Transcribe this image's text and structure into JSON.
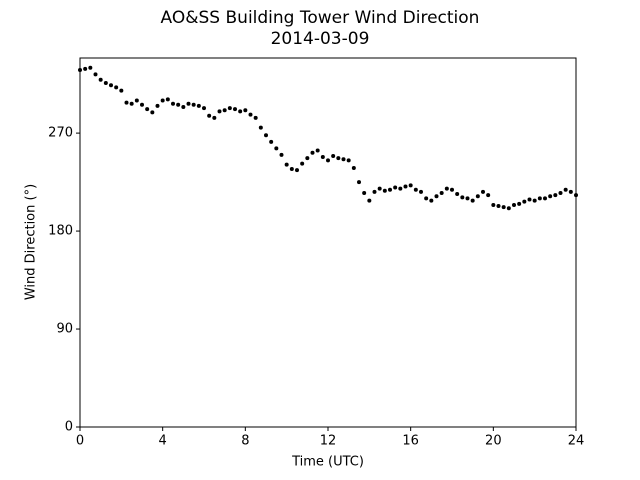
{
  "chart_data": {
    "type": "scatter",
    "title": "AO&SS Building Tower Wind Direction",
    "subtitle": "2014-03-09",
    "x_label": "Time (UTC)",
    "y_label": "Wind Direction (°)",
    "color": "#000000",
    "xlim": [
      0,
      24
    ],
    "xticks": [
      0,
      4,
      8,
      12,
      16,
      20,
      24
    ],
    "ylim": [
      0,
      339
    ],
    "yticks": [
      0,
      90,
      180,
      270
    ],
    "x": [
      0,
      0.25,
      0.5,
      0.75,
      1,
      1.25,
      1.5,
      1.75,
      2,
      2.25,
      2.5,
      2.75,
      3,
      3.25,
      3.5,
      3.75,
      4,
      4.25,
      4.5,
      4.75,
      5,
      5.25,
      5.5,
      5.75,
      6,
      6.25,
      6.5,
      6.75,
      7,
      7.25,
      7.5,
      7.75,
      8,
      8.25,
      8.5,
      8.75,
      9,
      9.25,
      9.5,
      9.75,
      10,
      10.25,
      10.5,
      10.75,
      11,
      11.25,
      11.5,
      11.75,
      12,
      12.25,
      12.5,
      12.75,
      13,
      13.25,
      13.5,
      13.75,
      14,
      14.25,
      14.5,
      14.75,
      15,
      15.25,
      15.5,
      15.75,
      16,
      16.25,
      16.5,
      16.75,
      17,
      17.25,
      17.5,
      17.75,
      18,
      18.25,
      18.5,
      18.75,
      19,
      19.25,
      19.5,
      19.75,
      20,
      20.25,
      20.5,
      20.75,
      21,
      21.25,
      21.5,
      21.75,
      22,
      22.25,
      22.5,
      22.75,
      23,
      23.25,
      23.5,
      23.75,
      24
    ],
    "values": [
      328,
      329,
      330,
      324,
      319,
      316,
      314,
      312,
      309,
      298,
      297,
      300,
      296,
      292,
      289,
      295,
      300,
      301,
      297,
      296,
      294,
      297,
      296,
      295,
      293,
      286,
      284,
      290,
      291,
      293,
      292,
      290,
      291,
      287,
      284,
      275,
      268,
      262,
      256,
      250,
      241,
      237,
      236,
      242,
      247,
      252,
      254,
      248,
      245,
      249,
      247,
      246,
      245,
      238,
      225,
      215,
      208,
      216,
      219,
      217,
      218,
      220,
      219,
      221,
      222,
      218,
      216,
      210,
      208,
      212,
      215,
      219,
      218,
      214,
      211,
      210,
      208,
      212,
      216,
      213,
      204,
      203,
      202,
      201,
      204,
      205,
      207,
      209,
      208,
      210,
      210,
      212,
      213,
      215,
      218,
      216,
      213
    ]
  }
}
